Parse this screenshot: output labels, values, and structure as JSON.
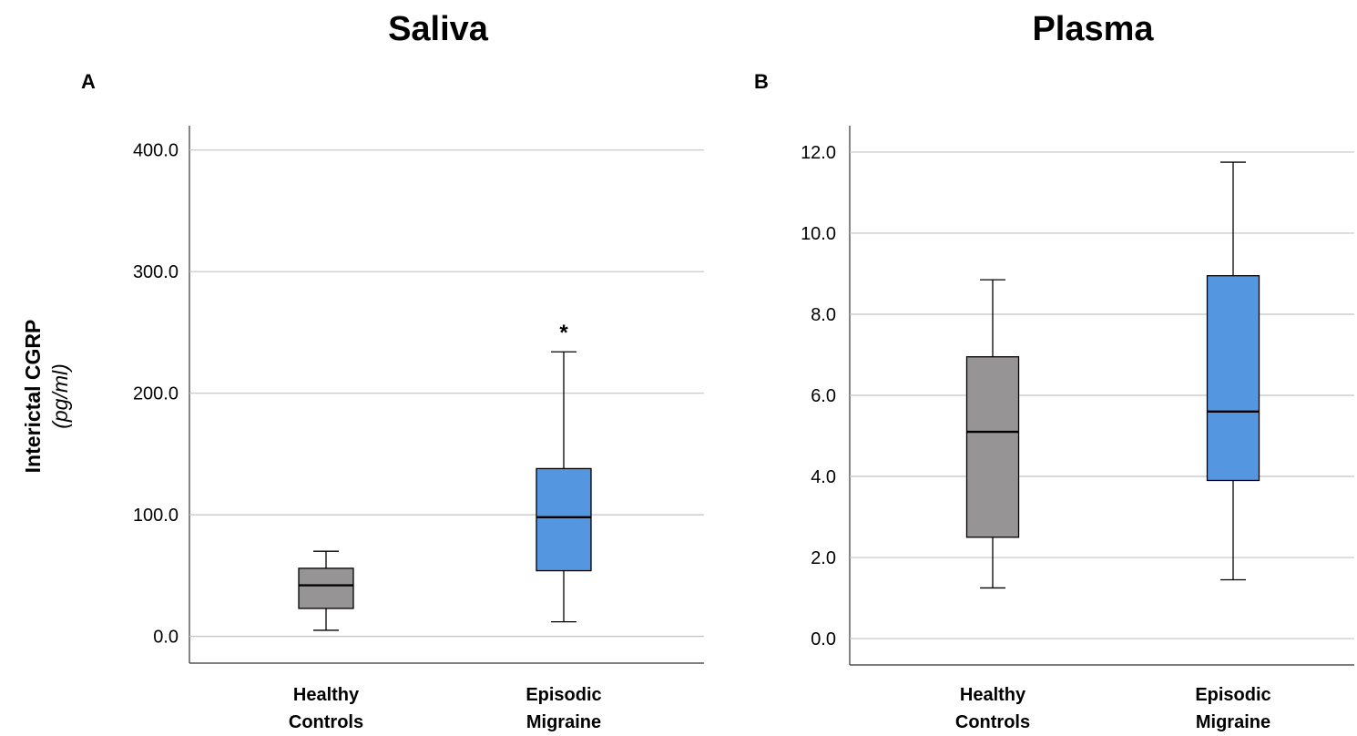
{
  "figure": {
    "y_axis_title": "Interictal CGRP",
    "y_axis_unit": "(pg/ml)"
  },
  "chart_data": [
    {
      "type": "box",
      "panel_letter": "A",
      "title": "Saliva",
      "ylim": [
        -22,
        420
      ],
      "yticks": [
        0,
        100,
        200,
        300,
        400
      ],
      "ytick_labels": [
        "0.0",
        "100.0",
        "200.0",
        "300.0",
        "400.0"
      ],
      "grid": true,
      "categories": [
        {
          "lines": [
            "Healthy",
            "Controls"
          ],
          "color": "#969494",
          "whisker_low": 5,
          "q1": 23,
          "median": 42,
          "q3": 56,
          "whisker_high": 70
        },
        {
          "lines": [
            "Episodic",
            "Migraine"
          ],
          "color": "#5596e0",
          "whisker_low": 12,
          "q1": 54,
          "median": 98,
          "q3": 138,
          "whisker_high": 234,
          "outlier_marker": "*",
          "outlier_value": 256
        }
      ]
    },
    {
      "type": "box",
      "panel_letter": "B",
      "title": "Plasma",
      "ylim": [
        -0.65,
        12.65
      ],
      "yticks": [
        0,
        2,
        4,
        6,
        8,
        10,
        12
      ],
      "ytick_labels": [
        "0.0",
        "2.0",
        "4.0",
        "6.0",
        "8.0",
        "10.0",
        "12.0"
      ],
      "grid": true,
      "categories": [
        {
          "lines": [
            "Healthy",
            "Controls"
          ],
          "color": "#969494",
          "whisker_low": 1.25,
          "q1": 2.5,
          "median": 5.1,
          "q3": 6.95,
          "whisker_high": 8.85
        },
        {
          "lines": [
            "Episodic",
            "Migraine"
          ],
          "color": "#5596e0",
          "whisker_low": 1.45,
          "q1": 3.9,
          "median": 5.6,
          "q3": 8.95,
          "whisker_high": 11.75
        }
      ]
    }
  ]
}
